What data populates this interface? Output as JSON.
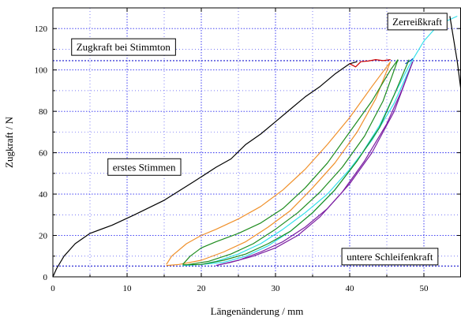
{
  "chart_data": {
    "type": "line",
    "xlabel": "Längenänderung / mm",
    "ylabel": "Zugkraft / N",
    "xlim": [
      0,
      55
    ],
    "ylim": [
      0,
      130
    ],
    "x_ticks": [
      0,
      10,
      20,
      30,
      40,
      50
    ],
    "y_ticks": [
      0,
      20,
      40,
      60,
      80,
      100,
      120
    ],
    "grid": "major and minor, blue dotted",
    "reference_lines": [
      {
        "y": 104.5,
        "style": "blue dotted"
      },
      {
        "y": 5.2,
        "style": "blue dotted"
      }
    ],
    "annotations": [
      {
        "text": "Zugkraft bei Stimmton",
        "x": 9.5,
        "y": 110.5
      },
      {
        "text": "erstes Stimmen",
        "x": 12.3,
        "y": 52.5
      },
      {
        "text": "Zerreißkraft",
        "x": 49.1,
        "y": 122.8
      },
      {
        "text": "untere Schleifenkraft",
        "x": 45.4,
        "y": 9.2
      }
    ],
    "series": [
      {
        "color": "#000000",
        "x": [
          0,
          0.5,
          1.5,
          3,
          5,
          8,
          11,
          15,
          19,
          22,
          24,
          26,
          28,
          30,
          32,
          34,
          36,
          38,
          40,
          41
        ],
        "y": [
          0,
          4,
          10,
          16,
          21,
          25,
          30,
          37,
          46,
          53,
          57,
          64,
          69,
          75,
          81,
          87,
          92,
          98,
          103,
          104
        ]
      },
      {
        "color": "#cc0000",
        "x": [
          40,
          40.8,
          41.5,
          42.5,
          43.5,
          44.5,
          45.5
        ],
        "y": [
          103,
          101.5,
          104,
          104.3,
          105,
          104.5,
          105
        ]
      },
      {
        "color": "#f0902a",
        "x": [
          15.3,
          16,
          18,
          20,
          22,
          25,
          28,
          31,
          34,
          37,
          40,
          43,
          45.5
        ],
        "y": [
          6,
          10,
          16,
          20,
          23,
          28,
          34,
          42,
          52,
          64,
          77,
          92,
          104
        ]
      },
      {
        "color": "#f0902a",
        "x": [
          45.5,
          43.5,
          41,
          38,
          35,
          32,
          29,
          26,
          23,
          20,
          17,
          15.3
        ],
        "y": [
          104,
          86,
          70,
          55,
          43,
          32,
          24,
          17,
          12,
          8,
          6,
          5.5
        ]
      },
      {
        "color": "#1e8c1e",
        "x": [
          17.5,
          18.5,
          20,
          22,
          25,
          28,
          31,
          34,
          37,
          40,
          43,
          45.5,
          46.5
        ],
        "y": [
          6,
          10,
          14,
          17,
          21,
          26,
          33,
          43,
          55,
          70,
          85,
          100,
          105
        ]
      },
      {
        "color": "#1e8c1e",
        "x": [
          46.5,
          44.5,
          42,
          39,
          36,
          33,
          30,
          27,
          24,
          21,
          18,
          17.5
        ],
        "y": [
          105,
          85,
          68,
          53,
          41,
          31,
          23,
          16,
          11,
          7.5,
          5.8,
          5.8
        ]
      },
      {
        "color": "#33e0ea",
        "x": [
          17.5,
          20,
          23,
          26,
          29,
          32,
          35,
          38,
          41,
          44,
          46,
          48,
          50,
          52,
          54.5
        ],
        "y": [
          5.5,
          6,
          7,
          10,
          15,
          22,
          31,
          42,
          56,
          73,
          88,
          102,
          114,
          122,
          126
        ]
      },
      {
        "color": "#33e0ea",
        "x": [
          48.5,
          46,
          43,
          40,
          37,
          34,
          31,
          28,
          25,
          22,
          20
        ],
        "y": [
          104,
          84,
          66,
          52,
          40,
          31,
          23,
          16,
          11,
          7.5,
          6
        ]
      },
      {
        "color": "#0040c0",
        "x": [
          47.5,
          48.2,
          48.5
        ],
        "y": [
          103,
          104.5,
          105.5
        ]
      },
      {
        "color": "#1e8c1e",
        "x": [
          48,
          46,
          44,
          41,
          38,
          35,
          32,
          29,
          26,
          23,
          20,
          17.5
        ],
        "y": [
          105,
          88,
          72,
          56,
          42,
          31,
          22,
          16,
          11,
          8,
          6,
          5.8
        ]
      },
      {
        "color": "#7b1fa2",
        "x": [
          22,
          24,
          27,
          30,
          33,
          36,
          39,
          42,
          45,
          47,
          48.5
        ],
        "y": [
          5.5,
          7,
          10,
          14,
          20,
          29,
          41,
          56,
          74,
          90,
          104
        ]
      },
      {
        "color": "#7b1fa2",
        "x": [
          48.5,
          46,
          43,
          40,
          37,
          34,
          31,
          28,
          25,
          22
        ],
        "y": [
          104,
          80,
          60,
          45,
          33,
          24,
          17,
          12,
          8,
          5.5
        ]
      },
      {
        "color": "#000000",
        "x": [
          53.5,
          54.5,
          55
        ],
        "y": [
          126,
          104,
          90
        ]
      }
    ]
  }
}
